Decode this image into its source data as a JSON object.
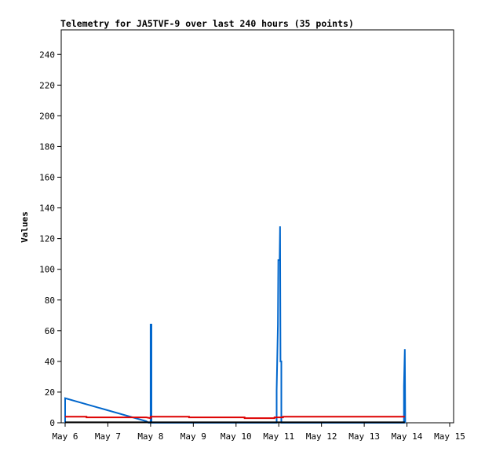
{
  "chart_data": {
    "type": "line",
    "title": "Telemetry for JA5TVF-9 over last 240 hours (35 points)",
    "xlabel": "",
    "ylabel": "Values",
    "x_ticks": [
      "May 6",
      "May 7",
      "May 8",
      "May 9",
      "May 10",
      "May 11",
      "May 12",
      "May 13",
      "May 14",
      "May 15"
    ],
    "xlim": [
      0,
      9
    ],
    "ylim": [
      0,
      256
    ],
    "y_ticks": [
      0,
      20,
      40,
      60,
      80,
      100,
      120,
      140,
      160,
      180,
      200,
      220,
      240
    ],
    "grid": false,
    "legend": "none",
    "series": [
      {
        "color": "#0066cc",
        "points": [
          [
            0.0,
            0
          ],
          [
            0.0,
            16
          ],
          [
            1.9,
            1
          ],
          [
            1.95,
            0
          ],
          [
            2.0,
            0
          ],
          [
            2.0,
            64
          ],
          [
            2.02,
            64
          ],
          [
            2.02,
            0
          ],
          [
            4.95,
            0
          ],
          [
            4.95,
            21
          ],
          [
            4.98,
            64
          ],
          [
            4.99,
            106
          ],
          [
            5.02,
            106
          ],
          [
            5.03,
            128
          ],
          [
            5.04,
            40
          ],
          [
            5.06,
            40
          ],
          [
            5.06,
            0
          ],
          [
            7.93,
            0
          ],
          [
            7.93,
            24
          ],
          [
            7.95,
            48
          ],
          [
            7.96,
            0
          ]
        ]
      },
      {
        "color": "#dd0000",
        "points": [
          [
            0.0,
            4
          ],
          [
            0.5,
            4
          ],
          [
            0.5,
            3.5
          ],
          [
            1.9,
            3.5
          ],
          [
            2.0,
            3
          ],
          [
            2.0,
            4
          ],
          [
            2.9,
            4
          ],
          [
            2.9,
            3.5
          ],
          [
            4.2,
            3.5
          ],
          [
            4.2,
            3
          ],
          [
            4.9,
            3
          ],
          [
            4.9,
            3.5
          ],
          [
            5.1,
            3.5
          ],
          [
            5.1,
            4
          ],
          [
            7.95,
            4
          ]
        ]
      },
      {
        "color": "#000000",
        "points": [
          [
            0.0,
            0.3
          ],
          [
            7.95,
            0.3
          ]
        ]
      }
    ]
  }
}
